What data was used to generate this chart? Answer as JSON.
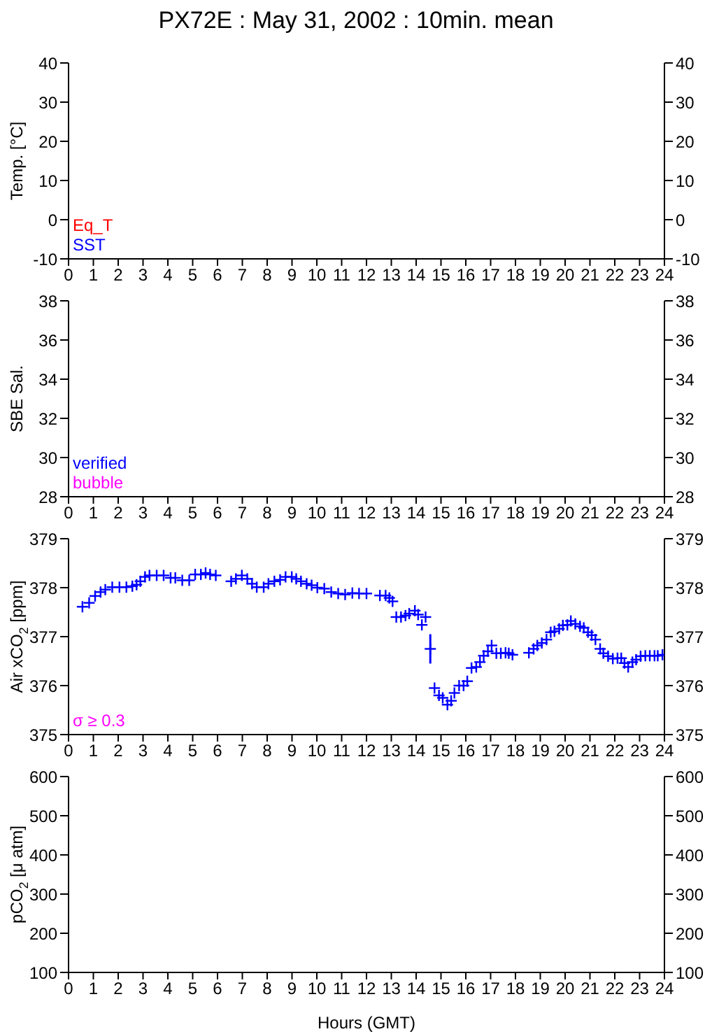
{
  "chart_data": [
    {
      "type": "scatter",
      "title": "PX72E : May 31, 2002 : 10min. mean",
      "ylabel": "Temp. [°C]",
      "xlim": [
        0,
        24
      ],
      "xticks": [
        0,
        1,
        2,
        3,
        4,
        5,
        6,
        7,
        8,
        9,
        10,
        11,
        12,
        13,
        14,
        15,
        16,
        17,
        18,
        19,
        20,
        21,
        22,
        23,
        24
      ],
      "ylim": [
        -10,
        40
      ],
      "yticks": [
        -10,
        0,
        10,
        20,
        30,
        40
      ],
      "y2lim": [
        -10,
        40
      ],
      "y2ticks": [
        -10,
        0,
        10,
        20,
        30,
        40
      ],
      "annotations": [
        "Eq_T",
        "SST"
      ]
    },
    {
      "type": "scatter",
      "ylabel": "SBE Sal.",
      "xlim": [
        0,
        24
      ],
      "xticks": [
        0,
        1,
        2,
        3,
        4,
        5,
        6,
        7,
        8,
        9,
        10,
        11,
        12,
        13,
        14,
        15,
        16,
        17,
        18,
        19,
        20,
        21,
        22,
        23,
        24
      ],
      "ylim": [
        28,
        38
      ],
      "yticks": [
        28,
        30,
        32,
        34,
        36,
        38
      ],
      "y2lim": [
        28,
        38
      ],
      "y2ticks": [
        28,
        30,
        32,
        34,
        36,
        38
      ],
      "annotations": [
        "verified",
        "bubble"
      ]
    },
    {
      "type": "scatter",
      "ylabel": "Air xCO$_{2}$ [ppm]",
      "annotations": [
        "σ ≥ 0.3"
      ],
      "xlim": [
        0,
        24
      ],
      "xticks": [
        0,
        1,
        2,
        3,
        4,
        5,
        6,
        7,
        8,
        9,
        10,
        11,
        12,
        13,
        14,
        15,
        16,
        17,
        18,
        19,
        20,
        21,
        22,
        23,
        24
      ],
      "ylim": [
        375,
        379
      ],
      "yticks": [
        375,
        376,
        377,
        378,
        379
      ],
      "y2lim": [
        375,
        379
      ],
      "y2ticks": [
        375,
        376,
        377,
        378,
        379
      ],
      "marker": "cross",
      "series": [
        {
          "color": "#0000ff",
          "x": [
            0.56,
            0.83,
            1.07,
            1.29,
            1.48,
            1.76,
            2.05,
            2.33,
            2.57,
            2.74,
            2.89,
            3.08,
            3.26,
            3.55,
            3.83,
            4.11,
            4.3,
            4.58,
            4.86,
            5.1,
            5.33,
            5.52,
            5.7,
            5.93,
            6.55,
            6.74,
            6.98,
            7.2,
            7.39,
            7.58,
            7.86,
            8.05,
            8.29,
            8.52,
            8.74,
            8.99,
            9.17,
            9.36,
            9.59,
            9.79,
            10.02,
            10.3,
            10.58,
            10.86,
            11.14,
            11.43,
            11.7,
            12.0,
            12.54,
            12.77,
            12.92,
            13.05,
            13.2,
            13.39,
            13.57,
            13.72,
            13.95,
            14.08,
            14.23,
            14.38,
            14.57,
            14.74,
            14.92,
            15.07,
            15.26,
            15.41,
            15.54,
            15.73,
            15.91,
            16.06,
            16.23,
            16.42,
            16.57,
            16.72,
            16.89,
            17.04,
            17.23,
            17.41,
            17.6,
            17.73,
            17.88,
            18.54,
            18.73,
            18.88,
            19.06,
            19.25,
            19.42,
            19.57,
            19.76,
            19.91,
            20.09,
            20.23,
            20.41,
            20.6,
            20.75,
            20.92,
            21.07,
            21.22,
            21.41,
            21.54,
            21.73,
            21.92,
            22.11,
            22.26,
            22.39,
            22.54,
            22.71,
            22.86,
            23.04,
            23.23,
            23.41,
            23.6,
            23.73,
            23.92
          ],
          "values": [
            377.61,
            377.69,
            377.83,
            377.91,
            377.96,
            378.01,
            378.01,
            378.01,
            378.03,
            378.06,
            378.13,
            378.22,
            378.25,
            378.25,
            378.25,
            378.2,
            378.2,
            378.15,
            378.15,
            378.27,
            378.27,
            378.3,
            378.27,
            378.25,
            378.13,
            378.18,
            378.25,
            378.18,
            378.08,
            378.01,
            378.01,
            378.08,
            378.13,
            378.16,
            378.22,
            378.22,
            378.18,
            378.13,
            378.08,
            378.05,
            378.0,
            377.98,
            377.91,
            377.88,
            377.86,
            377.89,
            377.88,
            377.88,
            377.84,
            377.84,
            377.79,
            377.72,
            377.4,
            377.4,
            377.43,
            377.47,
            377.53,
            377.45,
            377.24,
            377.4,
            376.75,
            375.95,
            375.8,
            375.75,
            375.61,
            375.69,
            375.85,
            376.0,
            376.0,
            376.09,
            376.36,
            376.38,
            376.48,
            376.61,
            376.7,
            376.82,
            376.66,
            376.66,
            376.67,
            376.66,
            376.63,
            376.67,
            376.75,
            376.82,
            376.87,
            376.94,
            377.09,
            377.11,
            377.16,
            377.23,
            377.24,
            377.32,
            377.26,
            377.21,
            377.18,
            377.09,
            377.03,
            376.94,
            376.75,
            376.66,
            376.6,
            376.55,
            376.56,
            376.56,
            376.46,
            376.38,
            376.48,
            376.53,
            376.6,
            376.61,
            376.61,
            376.61,
            376.61,
            376.63
          ],
          "errors": [
            null,
            null,
            null,
            null,
            null,
            null,
            null,
            null,
            null,
            null,
            null,
            null,
            null,
            null,
            null,
            null,
            null,
            null,
            null,
            null,
            null,
            null,
            null,
            null,
            null,
            null,
            null,
            null,
            null,
            null,
            null,
            null,
            null,
            null,
            null,
            null,
            null,
            null,
            null,
            null,
            null,
            null,
            null,
            null,
            null,
            null,
            null,
            null,
            null,
            null,
            null,
            null,
            null,
            null,
            null,
            null,
            null,
            null,
            null,
            null,
            0.3,
            null,
            null,
            null,
            null,
            null,
            null,
            null,
            null,
            null,
            null,
            null,
            null,
            null,
            null,
            null,
            null,
            null,
            null,
            null,
            null,
            null,
            null,
            null,
            null,
            null,
            null,
            null,
            null,
            null,
            null,
            null,
            null,
            null,
            null,
            null,
            null,
            null,
            null,
            null,
            null,
            null,
            null,
            null,
            null,
            null,
            null,
            null,
            null,
            null,
            null,
            null,
            null,
            null
          ]
        }
      ]
    },
    {
      "type": "scatter",
      "ylabel": "pCO$_{2}$ [μ atm]",
      "xlabel": "Hours (GMT)",
      "xlim": [
        0,
        24
      ],
      "xticks": [
        0,
        1,
        2,
        3,
        4,
        5,
        6,
        7,
        8,
        9,
        10,
        11,
        12,
        13,
        14,
        15,
        16,
        17,
        18,
        19,
        20,
        21,
        22,
        23,
        24
      ],
      "ylim": [
        100,
        600
      ],
      "yticks": [
        100,
        200,
        300,
        400,
        500,
        600
      ],
      "y2lim": [
        100,
        600
      ],
      "y2ticks": [
        100,
        200,
        300,
        400,
        500,
        600
      ]
    }
  ]
}
